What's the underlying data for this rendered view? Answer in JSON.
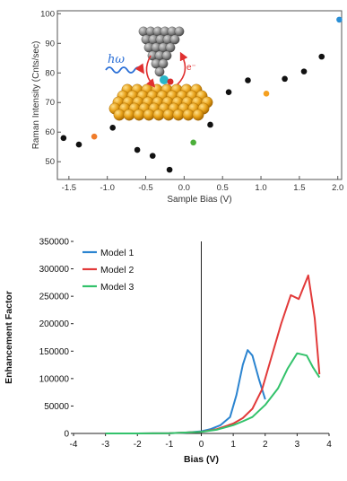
{
  "chart_data": [
    {
      "type": "scatter",
      "xlabel": "Sample Bias (V)",
      "ylabel": "Raman Intensity (Cnts/sec)",
      "xlim": [
        -1.65,
        2.05
      ],
      "ylim": [
        44,
        101
      ],
      "xticks": [
        "-1.5",
        "-1.0",
        "-0.5",
        "0.0",
        "0.5",
        "1.0",
        "1.5",
        "2.0"
      ],
      "yticks": [
        "50",
        "60",
        "70",
        "80",
        "90",
        "100"
      ],
      "grid": false,
      "points": [
        {
          "x": -1.57,
          "y": 58,
          "color": "#111111"
        },
        {
          "x": -1.37,
          "y": 55.8,
          "color": "#111111"
        },
        {
          "x": -1.17,
          "y": 58.5,
          "color": "#f07c2a"
        },
        {
          "x": -0.93,
          "y": 61.5,
          "color": "#111111"
        },
        {
          "x": -0.61,
          "y": 54,
          "color": "#111111"
        },
        {
          "x": -0.41,
          "y": 52,
          "color": "#111111"
        },
        {
          "x": -0.19,
          "y": 47.3,
          "color": "#111111"
        },
        {
          "x": 0.12,
          "y": 56.5,
          "color": "#4caf3a"
        },
        {
          "x": 0.34,
          "y": 62.5,
          "color": "#111111"
        },
        {
          "x": 0.58,
          "y": 73.5,
          "color": "#111111"
        },
        {
          "x": 0.83,
          "y": 77.5,
          "color": "#111111"
        },
        {
          "x": 1.07,
          "y": 73,
          "color": "#f5a020"
        },
        {
          "x": 1.31,
          "y": 78,
          "color": "#111111"
        },
        {
          "x": 1.56,
          "y": 80.5,
          "color": "#111111"
        },
        {
          "x": 1.79,
          "y": 85.5,
          "color": "#111111"
        },
        {
          "x": 2.02,
          "y": 98,
          "color": "#2a8fd6"
        }
      ],
      "inset": {
        "labels": [
          "hω",
          "e⁻"
        ]
      }
    },
    {
      "type": "line",
      "xlabel": "Bias (V)",
      "ylabel": "Enhancement Factor",
      "xlim": [
        -4,
        4
      ],
      "ylim": [
        0,
        350000
      ],
      "xticks": [
        "-4",
        "-3",
        "-2",
        "-1",
        "0",
        "1",
        "2",
        "3",
        "4"
      ],
      "yticks": [
        "0",
        "50000",
        "100000",
        "150000",
        "200000",
        "250000",
        "300000",
        "350000"
      ],
      "grid": false,
      "legend": "top-left",
      "series": [
        {
          "name": "Model 1",
          "color": "#2b84d0",
          "x": [
            -3,
            -2,
            -1,
            -0.5,
            0,
            0.3,
            0.6,
            0.9,
            1.1,
            1.3,
            1.45,
            1.6,
            1.8,
            2.0
          ],
          "y": [
            0,
            0,
            500,
            1500,
            4000,
            8000,
            15000,
            30000,
            70000,
            125000,
            152000,
            142000,
            100000,
            62000
          ]
        },
        {
          "name": "Model 2",
          "color": "#e23a3a",
          "x": [
            -3,
            -2,
            -1,
            0,
            0.5,
            1.0,
            1.3,
            1.6,
            1.9,
            2.2,
            2.5,
            2.8,
            3.05,
            3.35,
            3.55,
            3.7
          ],
          "y": [
            0,
            0,
            500,
            3000,
            8000,
            18000,
            28000,
            45000,
            80000,
            140000,
            200000,
            252000,
            245000,
            288000,
            210000,
            108000
          ]
        },
        {
          "name": "Model 3",
          "color": "#33c26b",
          "x": [
            -3,
            -2,
            -1,
            0,
            0.5,
            1.0,
            1.3,
            1.6,
            2.0,
            2.4,
            2.7,
            3.0,
            3.3,
            3.5,
            3.7
          ],
          "y": [
            0,
            0,
            500,
            3000,
            7000,
            15000,
            22000,
            30000,
            52000,
            82000,
            118000,
            146000,
            142000,
            120000,
            102000
          ]
        }
      ]
    }
  ]
}
